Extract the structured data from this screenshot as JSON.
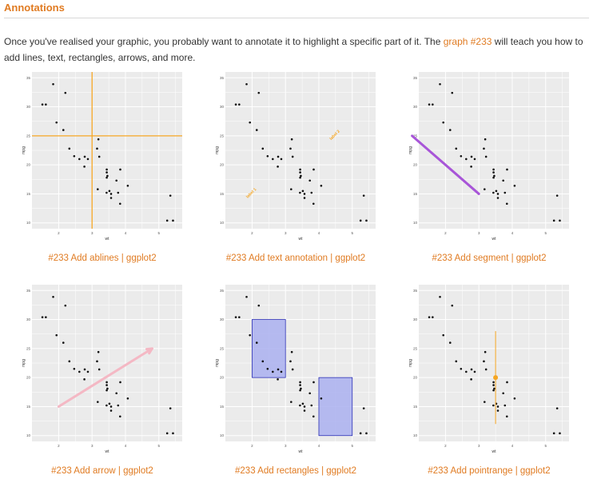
{
  "section": {
    "title": "Annotations"
  },
  "intro": {
    "before": "Once you've realised your graphic, you probably want to annotate it to highlight a specific part of it. The ",
    "link": "graph #233",
    "after": " will teach you how to add lines, text, rectangles, arrows, and more."
  },
  "colors": {
    "accent": "#e07b22",
    "panel": "#ebebeb",
    "grid": "#ffffff",
    "abline": "#f5a623",
    "text_label": "#f5a623",
    "segment": "#a855d8",
    "arrow": "#f4b8c4",
    "rect_fill": "#aab0f0",
    "rect_stroke": "#2b2fb3",
    "pointrange": "#f5a623"
  },
  "plot": {
    "xlabel": "wt",
    "ylabel": "mpg",
    "x_ticks": [
      "2",
      "3",
      "4",
      "5"
    ],
    "y_ticks": [
      "10",
      "15",
      "20",
      "25",
      "30",
      "35"
    ]
  },
  "chart_data": {
    "type": "scatter",
    "x": [
      2.62,
      2.875,
      2.32,
      3.215,
      3.44,
      3.46,
      3.57,
      3.19,
      3.15,
      3.44,
      3.44,
      4.07,
      3.73,
      3.78,
      5.25,
      5.424,
      5.345,
      2.2,
      1.615,
      1.835,
      2.465,
      3.52,
      3.435,
      3.84,
      3.845,
      1.935,
      2.14,
      1.513,
      3.17,
      2.77,
      3.57,
      2.78
    ],
    "y": [
      21.0,
      21.0,
      22.8,
      21.4,
      18.7,
      18.1,
      14.3,
      24.4,
      22.8,
      19.2,
      17.8,
      16.4,
      17.3,
      15.2,
      10.4,
      10.4,
      14.7,
      32.4,
      30.4,
      33.9,
      21.5,
      15.5,
      15.2,
      13.3,
      19.2,
      27.3,
      26.0,
      30.4,
      15.8,
      19.7,
      15.0,
      21.4
    ],
    "xlim": [
      1.2,
      5.7
    ],
    "ylim": [
      9,
      36
    ],
    "xlabel": "wt",
    "ylabel": "mpg",
    "annotations": {
      "ablines": {
        "vline_x": 3,
        "hline_y": 25
      },
      "text": [
        {
          "label": "label 1",
          "x": 2,
          "y": 15
        },
        {
          "label": "label 2",
          "x": 4.5,
          "y": 25
        }
      ],
      "segment": {
        "x1": 1,
        "y1": 25,
        "x2": 3,
        "y2": 15
      },
      "arrow": {
        "x1": 2,
        "y1": 15,
        "x2": 4.8,
        "y2": 25
      },
      "rectangles": [
        {
          "xmin": 2,
          "xmax": 3,
          "ymin": 20,
          "ymax": 30
        },
        {
          "xmin": 4,
          "xmax": 5,
          "ymin": 10,
          "ymax": 20
        }
      ],
      "pointrange": {
        "x": 3.5,
        "y": 20,
        "ymin": 12,
        "ymax": 28
      }
    }
  },
  "cards": [
    {
      "caption": "#233 Add ablines | ggplot2",
      "kind": "ablines"
    },
    {
      "caption": "#233 Add text annotation | ggplot2",
      "kind": "text"
    },
    {
      "caption": "#233 Add segment | ggplot2",
      "kind": "segment"
    },
    {
      "caption": "#233 Add arrow | ggplot2",
      "kind": "arrow"
    },
    {
      "caption": "#233 Add rectangles | ggplot2",
      "kind": "rectangles"
    },
    {
      "caption": "#233 Add pointrange | ggplot2",
      "kind": "pointrange"
    }
  ]
}
